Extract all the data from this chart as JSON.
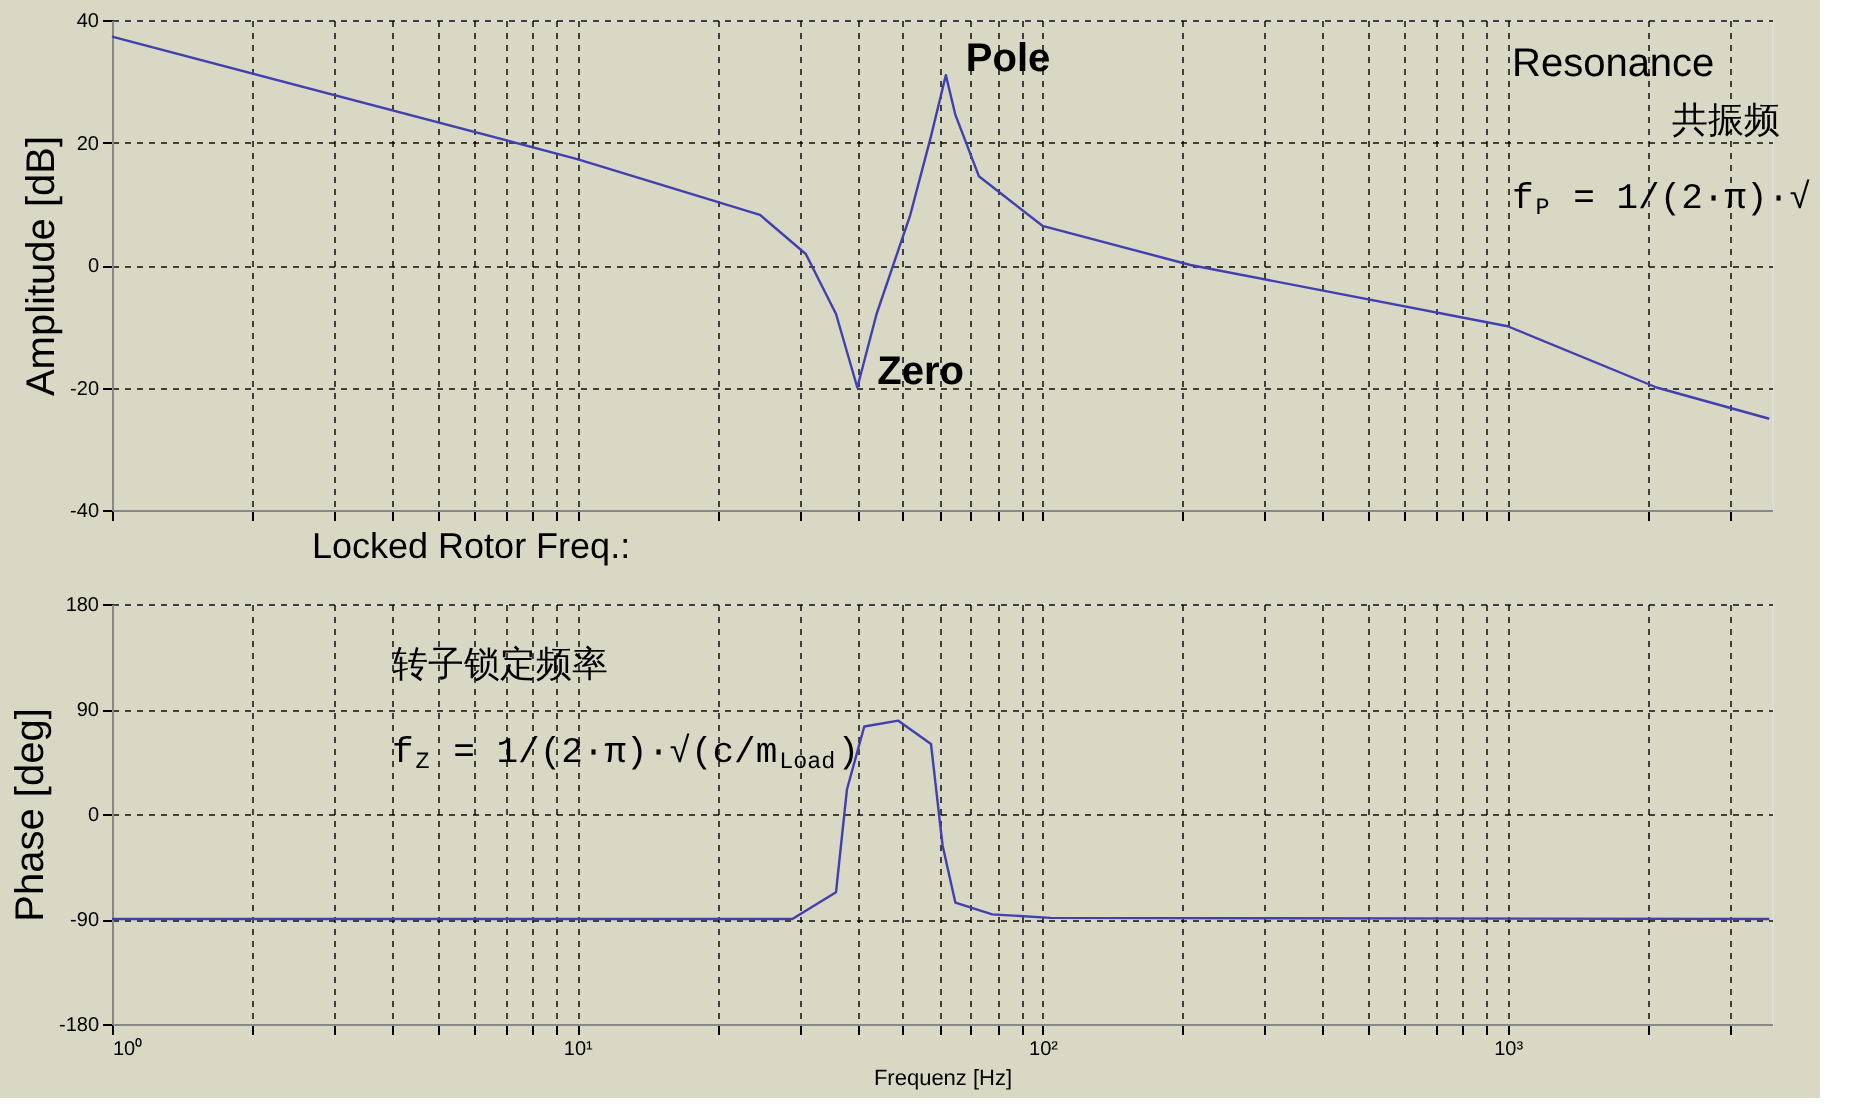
{
  "chart_data": [
    {
      "type": "line",
      "ylabel": "Amplitude [dB]",
      "tick_labels": "y",
      "log": "x",
      "grid": true,
      "line_style": "solid",
      "marker": "none",
      "x": [
        1,
        10,
        24.7,
        31,
        36,
        40,
        44,
        52,
        57.6,
        62,
        65,
        73,
        100,
        208,
        1000,
        2090,
        3650
      ],
      "series": [
        {
          "color": "#4040b0",
          "values": [
            37.3,
            17.3,
            8.2,
            1.8,
            -8,
            -20,
            -8,
            8.2,
            21,
            31,
            24.5,
            14.5,
            6.4,
            0,
            -10,
            -20,
            -25.1
          ]
        }
      ],
      "xlim": [
        1,
        3700
      ],
      "ylim": [
        -40,
        40
      ],
      "yticks": [
        -40,
        -20,
        0,
        20,
        40
      ],
      "xticks": [
        {
          "value": 1,
          "label": null
        },
        {
          "value": 2,
          "label": null
        },
        {
          "value": 3,
          "label": null
        },
        {
          "value": 4,
          "label": null
        },
        {
          "value": 5,
          "label": null
        },
        {
          "value": 6,
          "label": null
        },
        {
          "value": 7,
          "label": null
        },
        {
          "value": 8,
          "label": null
        },
        {
          "value": 9,
          "label": null
        },
        {
          "value": 10,
          "label": null
        },
        {
          "value": 20,
          "label": null
        },
        {
          "value": 30,
          "label": null
        },
        {
          "value": 40,
          "label": null
        },
        {
          "value": 50,
          "label": null
        },
        {
          "value": 60,
          "label": null
        },
        {
          "value": 70,
          "label": null
        },
        {
          "value": 80,
          "label": null
        },
        {
          "value": 90,
          "label": null
        },
        {
          "value": 100,
          "label": null
        },
        {
          "value": 200,
          "label": null
        },
        {
          "value": 300,
          "label": null
        },
        {
          "value": 400,
          "label": null
        },
        {
          "value": 500,
          "label": null
        },
        {
          "value": 600,
          "label": null
        },
        {
          "value": 700,
          "label": null
        },
        {
          "value": 800,
          "label": null
        },
        {
          "value": 900,
          "label": null
        },
        {
          "value": 1000,
          "label": null
        },
        {
          "value": 2000,
          "label": null
        },
        {
          "value": 3000,
          "label": null
        }
      ],
      "annotations": [
        {
          "text": "Pole",
          "x": 62,
          "y": 31
        },
        {
          "text": "Zero",
          "x": 40,
          "y": -20
        },
        "Resonance",
        "共振频",
        "f$_{P}$ = 1/(2·π)·√",
        "Locked Rotor Freq.:"
      ]
    },
    {
      "type": "line",
      "ylabel": "Phase [deg]",
      "xlabel": "Frequenz [Hz]",
      "log": "x",
      "grid": true,
      "line_style": "solid",
      "marker": "none",
      "x": [
        1,
        29,
        36,
        38,
        41.4,
        49,
        57.6,
        61,
        65,
        78,
        104,
        3650
      ],
      "series": [
        {
          "color": "#4040b0",
          "values": [
            -90,
            -90,
            -67,
            21,
            75,
            80,
            60,
            -27,
            -76,
            -86,
            -89,
            -90
          ]
        }
      ],
      "xlim": [
        1,
        3700
      ],
      "ylim": [
        -180,
        180
      ],
      "yticks": [
        -180,
        -90,
        0,
        90,
        180
      ],
      "xticks": [
        {
          "value": 1,
          "label": "10⁰"
        },
        {
          "value": 2,
          "label": null
        },
        {
          "value": 3,
          "label": null
        },
        {
          "value": 4,
          "label": null
        },
        {
          "value": 5,
          "label": null
        },
        {
          "value": 6,
          "label": null
        },
        {
          "value": 7,
          "label": null
        },
        {
          "value": 8,
          "label": null
        },
        {
          "value": 9,
          "label": null
        },
        {
          "value": 10,
          "label": "10¹"
        },
        {
          "value": 20,
          "label": null
        },
        {
          "value": 30,
          "label": null
        },
        {
          "value": 40,
          "label": null
        },
        {
          "value": 50,
          "label": null
        },
        {
          "value": 60,
          "label": null
        },
        {
          "value": 70,
          "label": null
        },
        {
          "value": 80,
          "label": null
        },
        {
          "value": 90,
          "label": null
        },
        {
          "value": 100,
          "label": "10²"
        },
        {
          "value": 200,
          "label": null
        },
        {
          "value": 300,
          "label": null
        },
        {
          "value": 400,
          "label": null
        },
        {
          "value": 500,
          "label": null
        },
        {
          "value": 600,
          "label": null
        },
        {
          "value": 700,
          "label": null
        },
        {
          "value": 800,
          "label": null
        },
        {
          "value": 900,
          "label": null
        },
        {
          "value": 1000,
          "label": "10³"
        },
        {
          "value": 2000,
          "label": null
        },
        {
          "value": 3000,
          "label": null
        }
      ],
      "annotations": [
        "转子锁定频率",
        "f$_{Z}$ = 1/(2·π)·√(c/m$_{Load}$)"
      ]
    }
  ]
}
